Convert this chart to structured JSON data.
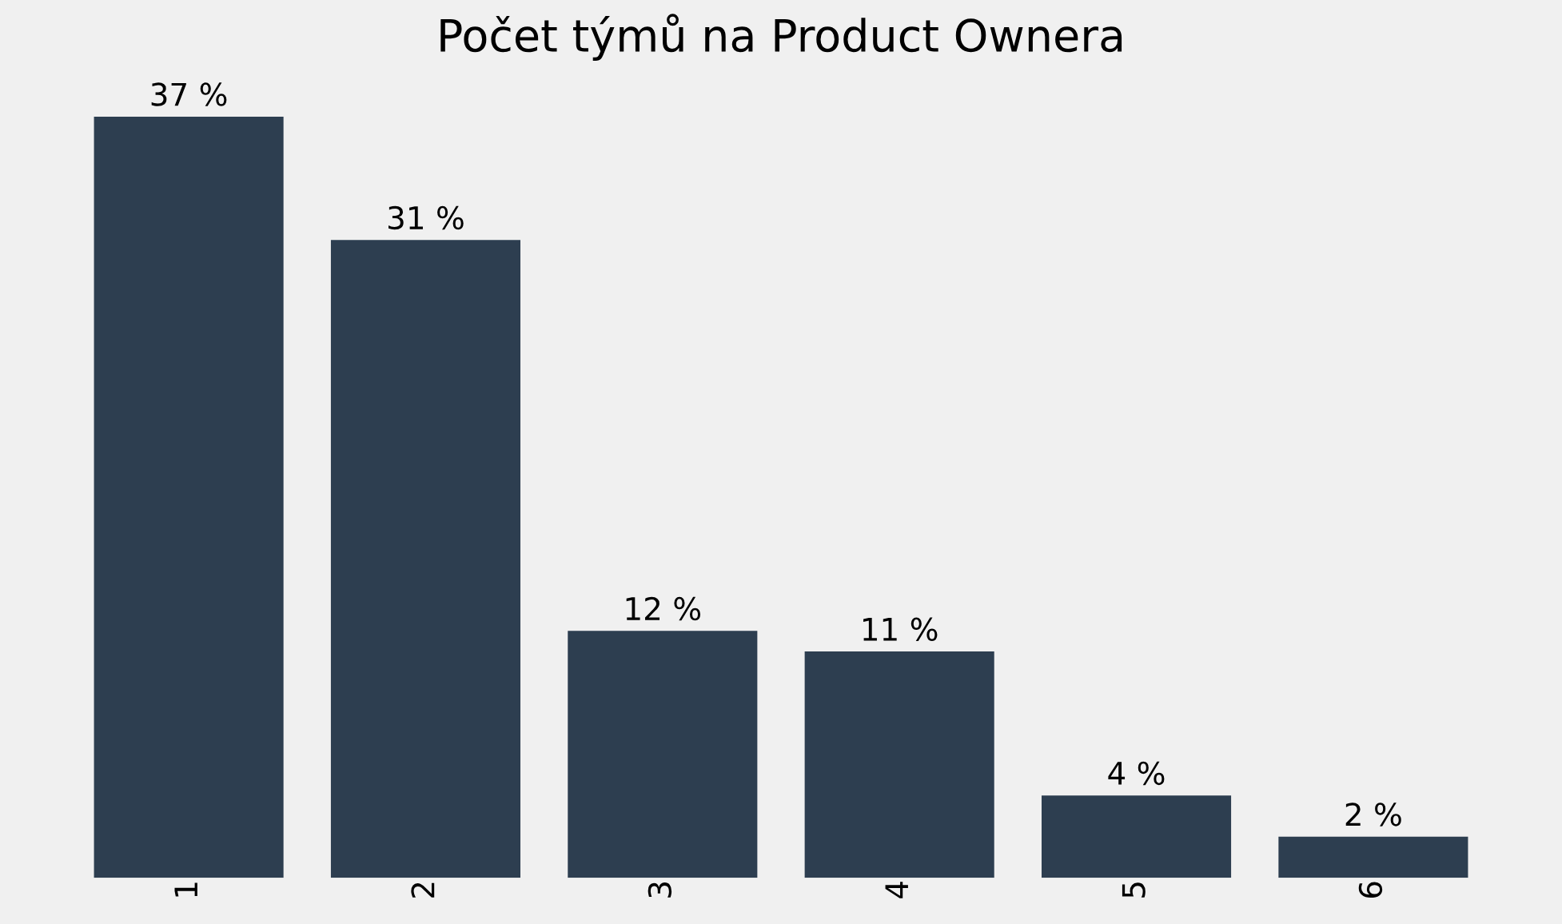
{
  "chart_data": {
    "type": "bar",
    "title": "Počet týmů na Product Ownera",
    "categories": [
      "1",
      "2",
      "3",
      "4",
      "5",
      "6"
    ],
    "values": [
      37,
      31,
      12,
      11,
      4,
      2
    ],
    "value_labels": [
      "37 %",
      "31 %",
      "12 %",
      "11 %",
      "4 %",
      "2 %"
    ],
    "color": "#2d3e50",
    "grid": false
  }
}
